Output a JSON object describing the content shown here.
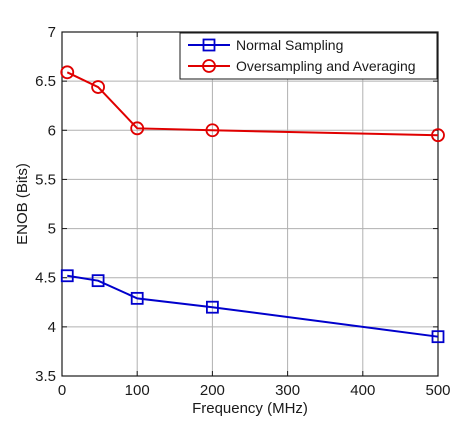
{
  "chart_data": {
    "type": "line",
    "title": "",
    "xlabel": "Frequency (MHz)",
    "ylabel": "ENOB (Bits)",
    "xlim": [
      0,
      500
    ],
    "ylim": [
      3.5,
      7
    ],
    "xticks": [
      0,
      100,
      200,
      300,
      400,
      500
    ],
    "yticks": [
      3.5,
      4,
      4.5,
      5,
      5.5,
      6,
      6.5,
      7
    ],
    "xtick_labels": [
      "0",
      "100",
      "200",
      "300",
      "400",
      "500"
    ],
    "ytick_labels": [
      "3.5",
      "4",
      "4.5",
      "5",
      "5.5",
      "6",
      "6.5",
      "7"
    ],
    "grid": true,
    "legend_position": "top-right",
    "series": [
      {
        "name": "Normal Sampling",
        "color": "#0000cc",
        "marker": "square",
        "x": [
          7,
          48,
          100,
          200,
          500
        ],
        "y": [
          4.52,
          4.47,
          4.29,
          4.2,
          3.9
        ]
      },
      {
        "name": "Oversampling and Averaging",
        "color": "#e00000",
        "marker": "circle",
        "x": [
          7,
          48,
          100,
          200,
          500
        ],
        "y": [
          6.59,
          6.44,
          6.02,
          6.0,
          5.95
        ]
      }
    ]
  }
}
